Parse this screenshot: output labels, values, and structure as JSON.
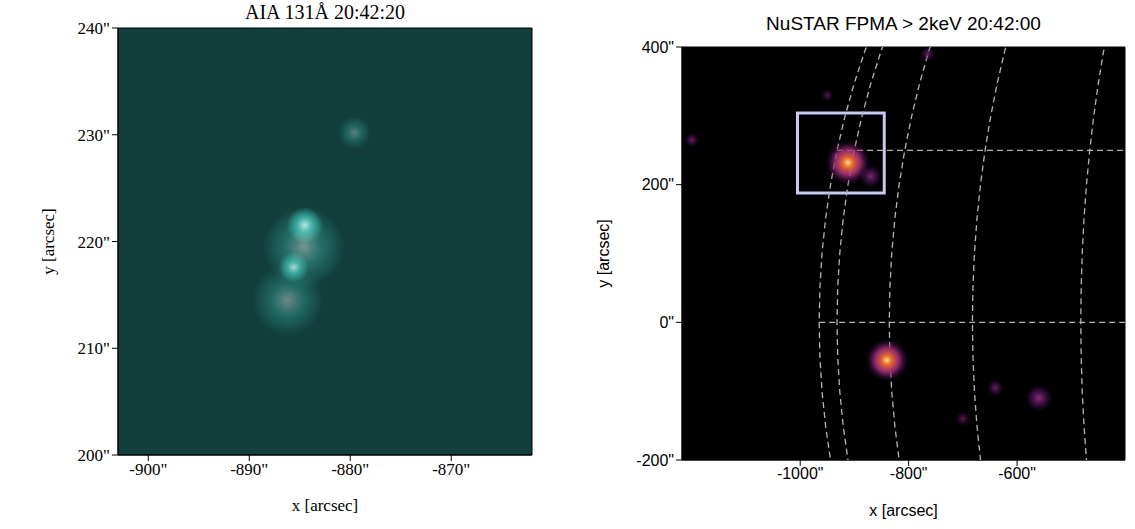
{
  "chart_data": [
    {
      "type": "image",
      "title": "AIA 131Å 20:42:20",
      "x_label": "x [arcsec]",
      "y_label": "y [arcsec]",
      "xlim": [
        -903,
        -862
      ],
      "ylim": [
        200,
        240
      ],
      "xticks": [
        {
          "value": -900,
          "label": "-900\""
        },
        {
          "value": -890,
          "label": "-890\""
        },
        {
          "value": -880,
          "label": "-880\""
        },
        {
          "value": -870,
          "label": "-870\""
        }
      ],
      "yticks": [
        {
          "value": 200,
          "label": "200\""
        },
        {
          "value": 210,
          "label": "210\""
        },
        {
          "value": 220,
          "label": "220\""
        },
        {
          "value": 230,
          "label": "230\""
        },
        {
          "value": 240,
          "label": "240\""
        }
      ],
      "color": "#3fb8ac",
      "grid": false,
      "sources": [
        {
          "x": -884.5,
          "y": 221.5,
          "size": 1.8,
          "intensity": 1
        },
        {
          "x": -885.6,
          "y": 217.6,
          "size": 1.5,
          "intensity": 0.9
        },
        {
          "x": -884.6,
          "y": 219.5,
          "size": 4,
          "intensity": 0.45
        },
        {
          "x": -886.2,
          "y": 214.5,
          "size": 3.5,
          "intensity": 0.4
        },
        {
          "x": -879.6,
          "y": 230.2,
          "size": 1.6,
          "intensity": 0.35
        }
      ]
    },
    {
      "type": "image",
      "title": "NuSTAR FPMA > 2keV 20:42:00",
      "x_label": "x [arcsec]",
      "y_label": "y [arcsec]",
      "xlim": [
        -1218,
        -401
      ],
      "ylim": [
        -200,
        400
      ],
      "xticks": [
        {
          "value": -1000,
          "label": "-1000\""
        },
        {
          "value": -800,
          "label": "-800\""
        },
        {
          "value": -600,
          "label": "-600\""
        }
      ],
      "yticks": [
        {
          "value": -200,
          "label": "-200\""
        },
        {
          "value": 0,
          "label": "0\""
        },
        {
          "value": 200,
          "label": "200\""
        },
        {
          "value": 400,
          "label": "400\""
        }
      ],
      "color": "#e8682e",
      "grid": true,
      "limb_radius": 965,
      "grid_step": 15,
      "box": {
        "xlim": [
          -1005,
          -845
        ],
        "ylim": [
          188,
          304
        ],
        "color": "#c8c8f0"
      },
      "sources": [
        {
          "x": -912,
          "y": 232,
          "size": 42,
          "intensity": 1
        },
        {
          "x": -840,
          "y": -55,
          "size": 40,
          "intensity": 0.9
        },
        {
          "x": -870,
          "y": 212,
          "size": 22,
          "intensity": 0.35
        },
        {
          "x": -765,
          "y": 390,
          "size": 14,
          "intensity": 0.3
        },
        {
          "x": -950,
          "y": 330,
          "size": 12,
          "intensity": 0.25
        },
        {
          "x": -1200,
          "y": 265,
          "size": 14,
          "intensity": 0.3
        },
        {
          "x": -560,
          "y": -110,
          "size": 26,
          "intensity": 0.4
        },
        {
          "x": -640,
          "y": -95,
          "size": 16,
          "intensity": 0.3
        },
        {
          "x": -700,
          "y": -140,
          "size": 14,
          "intensity": 0.25
        }
      ]
    }
  ]
}
